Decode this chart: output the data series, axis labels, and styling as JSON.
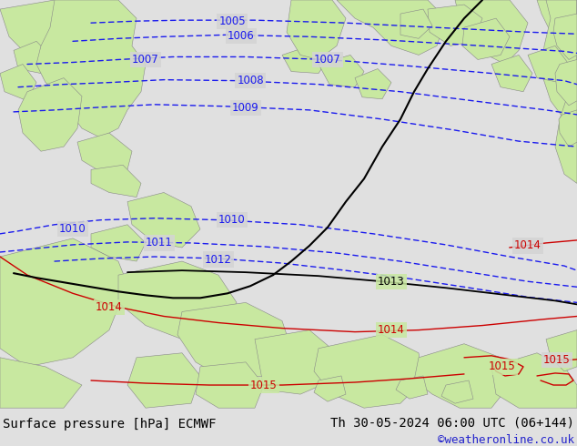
{
  "title_left": "Surface pressure [hPa] ECMWF",
  "title_right": "Th 30-05-2024 06:00 UTC (06+144)",
  "credit": "©weatheronline.co.uk",
  "background_land": "#c8e8a0",
  "background_sea": "#d4d4d4",
  "bottom_bar_color": "#e0e0e0",
  "isobar_blue_color": "#1a1aee",
  "isobar_black_color": "#000000",
  "isobar_red_color": "#cc0000",
  "label_fontsize": 8.5,
  "title_fontsize": 10,
  "credit_fontsize": 9,
  "figsize": [
    6.34,
    4.9
  ],
  "dpi": 100,
  "land_edge_color": "#888888",
  "land_edge_width": 0.4
}
